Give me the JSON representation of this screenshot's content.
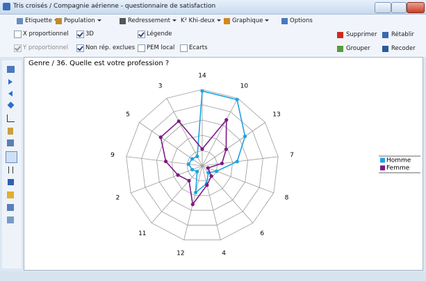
{
  "window": {
    "title": "Tris croisés / Compagnie aérienne - questionnaire de satisfaction"
  },
  "toolbar": {
    "menus": [
      {
        "label": "Etiquette",
        "dropdown": true
      },
      {
        "label": "Population",
        "dropdown": true
      },
      {
        "label": "Redressement",
        "dropdown": true
      },
      {
        "label": "K² Khi-deux",
        "dropdown": true
      },
      {
        "label": "Graphique",
        "dropdown": true
      },
      {
        "label": "Options",
        "dropdown": false
      }
    ],
    "checkboxes_row1": [
      {
        "label": "X proportionnel",
        "checked": false,
        "enabled": true
      },
      {
        "label": "3D",
        "checked": true,
        "enabled": true
      },
      {
        "label": "Légende",
        "checked": true,
        "enabled": true
      }
    ],
    "checkboxes_row2": [
      {
        "label": "Y proportionnel",
        "checked": true,
        "enabled": false
      },
      {
        "label": "Non rép. exclues",
        "checked": true,
        "enabled": true
      },
      {
        "label": "PEM local",
        "checked": false,
        "enabled": true
      },
      {
        "label": "Ecarts",
        "checked": false,
        "enabled": true
      }
    ],
    "actions_row1": [
      "Supprimer",
      "Rétablir"
    ],
    "actions_row2": [
      "Grouper",
      "Recoder"
    ]
  },
  "chart_data": {
    "type": "radar",
    "title": "Genre / 36. Quelle est votre profession ?",
    "categories": [
      "14",
      "10",
      "13",
      "7",
      "8",
      "6",
      "4",
      "12",
      "11",
      "2",
      "9",
      "5",
      "3"
    ],
    "rlim": [
      0,
      5
    ],
    "rticks": [
      1,
      2,
      3,
      4,
      5
    ],
    "grid": true,
    "legend": "right",
    "series": [
      {
        "name": "Homme",
        "color": "#1ea3e3",
        "values": [
          4.9,
          4.9,
          3.4,
          2.3,
          1.0,
          0.6,
          1.2,
          1.8,
          0.5,
          0.7,
          0.9,
          0.8,
          0.7
        ]
      },
      {
        "name": "Femme",
        "color": "#7b1a82",
        "values": [
          1.1,
          3.4,
          1.9,
          1.3,
          0.4,
          0.9,
          1.3,
          2.6,
          1.3,
          1.7,
          2.4,
          3.3,
          3.3
        ]
      }
    ]
  }
}
